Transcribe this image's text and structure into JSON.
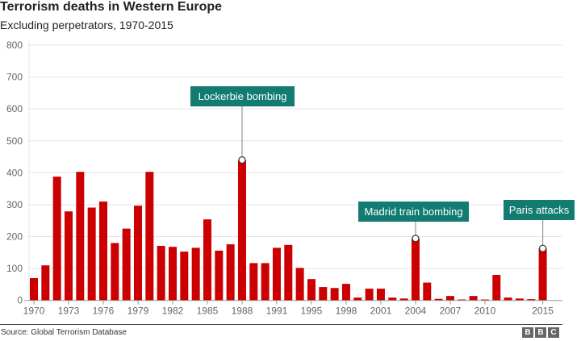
{
  "chart_data": {
    "type": "bar",
    "title": "Terrorism deaths in Western Europe",
    "subtitle": "Excluding perpetrators, 1970-2015",
    "categories": [
      "1970",
      "1971",
      "1972",
      "1973",
      "1974",
      "1975",
      "1976",
      "1977",
      "1978",
      "1979",
      "1980",
      "1981",
      "1982",
      "1983",
      "1984",
      "1985",
      "1986",
      "1987",
      "1988",
      "1989",
      "1990",
      "1991",
      "1992",
      "1994",
      "1995",
      "1996",
      "1997",
      "1998",
      "1999",
      "2000",
      "2001",
      "2002",
      "2003",
      "2004",
      "2005",
      "2006",
      "2007",
      "2008",
      "2009",
      "2010",
      "2011",
      "2012",
      "2013",
      "2014",
      "2015"
    ],
    "values": [
      70,
      110,
      388,
      279,
      403,
      291,
      310,
      180,
      225,
      297,
      403,
      171,
      168,
      153,
      165,
      254,
      156,
      176,
      440,
      117,
      117,
      165,
      174,
      102,
      67,
      42,
      39,
      52,
      9,
      37,
      37,
      9,
      6,
      194,
      56,
      5,
      14,
      3,
      14,
      3,
      80,
      9,
      6,
      4,
      163
    ],
    "xtick_labels": [
      "1970",
      "1973",
      "1976",
      "1979",
      "1982",
      "1985",
      "1988",
      "1991",
      "1995",
      "1998",
      "2001",
      "2004",
      "2007",
      "2010",
      "2015"
    ],
    "yticks": [
      0,
      100,
      200,
      300,
      400,
      500,
      600,
      700,
      800
    ],
    "ylim": [
      0,
      800
    ],
    "grid": true,
    "bar_color": "#cc0000",
    "annotation_color": "#127c72",
    "annotations": [
      {
        "label": "Lockerbie bombing",
        "year": "1988"
      },
      {
        "label": "Madrid train bombing",
        "year": "2004"
      },
      {
        "label": "Paris attacks",
        "year": "2015"
      }
    ]
  },
  "footer": {
    "source": "Source: Global Terrorism Database",
    "logo": [
      "B",
      "B",
      "C"
    ]
  }
}
